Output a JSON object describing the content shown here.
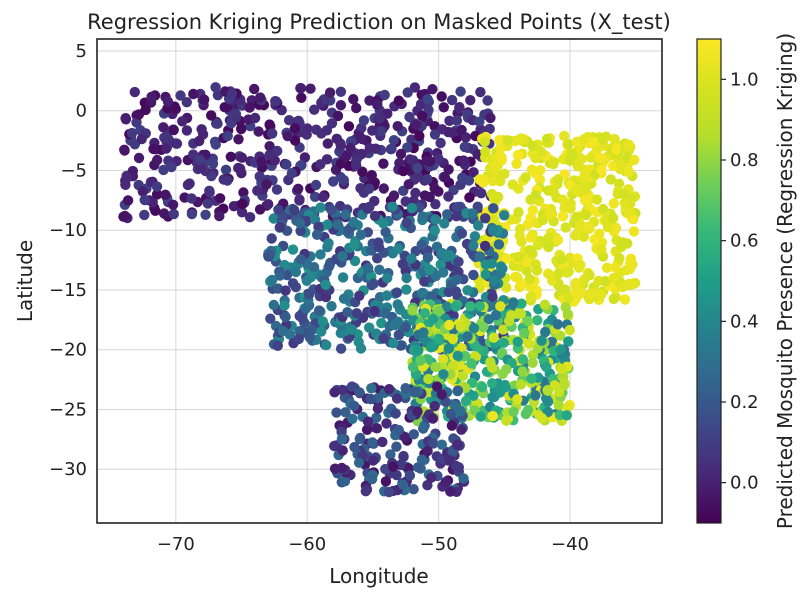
{
  "chart_data": {
    "type": "scatter",
    "title": "Regression Kriging Prediction on Masked Points (X_test)",
    "xlabel": "Longitude",
    "ylabel": "Latitude",
    "xlim": [
      -76,
      -33
    ],
    "ylim": [
      -34.5,
      6
    ],
    "xticks": [
      -70,
      -60,
      -50,
      -40
    ],
    "yticks": [
      5,
      0,
      -5,
      -10,
      -15,
      -20,
      -25,
      -30
    ],
    "grid": true,
    "colormap": "viridis",
    "colorbar": {
      "label": "Predicted Mosquito Presence (Regression Kriging)",
      "range": [
        -0.1,
        1.1
      ],
      "ticks": [
        0.0,
        0.2,
        0.4,
        0.6,
        0.8,
        1.0
      ]
    },
    "colors": {
      "viridis_stops": [
        "#440154",
        "#482878",
        "#3e4989",
        "#31688e",
        "#26828e",
        "#1f9e89",
        "#35b779",
        "#6ece58",
        "#b5de2b",
        "#d6e21f",
        "#fde725"
      ],
      "frame": "#222222",
      "grid": "#d6d6d6"
    },
    "regions": [
      {
        "name": "north",
        "lon": [
          -74,
          -46
        ],
        "lat": [
          -9,
          2
        ],
        "value": [
          -0.08,
          0.12
        ]
      },
      {
        "name": "northeast",
        "lon": [
          -47,
          -35
        ],
        "lat": [
          -16,
          -2
        ],
        "value": [
          0.95,
          1.08
        ]
      },
      {
        "name": "central",
        "lon": [
          -63,
          -45
        ],
        "lat": [
          -20,
          -8
        ],
        "value": [
          0.05,
          0.45
        ]
      },
      {
        "name": "southeast",
        "lon": [
          -52,
          -40
        ],
        "lat": [
          -26,
          -16
        ],
        "value": [
          0.3,
          1.05
        ]
      },
      {
        "name": "south",
        "lon": [
          -58,
          -48
        ],
        "lat": [
          -32,
          -23
        ],
        "value": [
          -0.05,
          0.3
        ]
      }
    ]
  }
}
